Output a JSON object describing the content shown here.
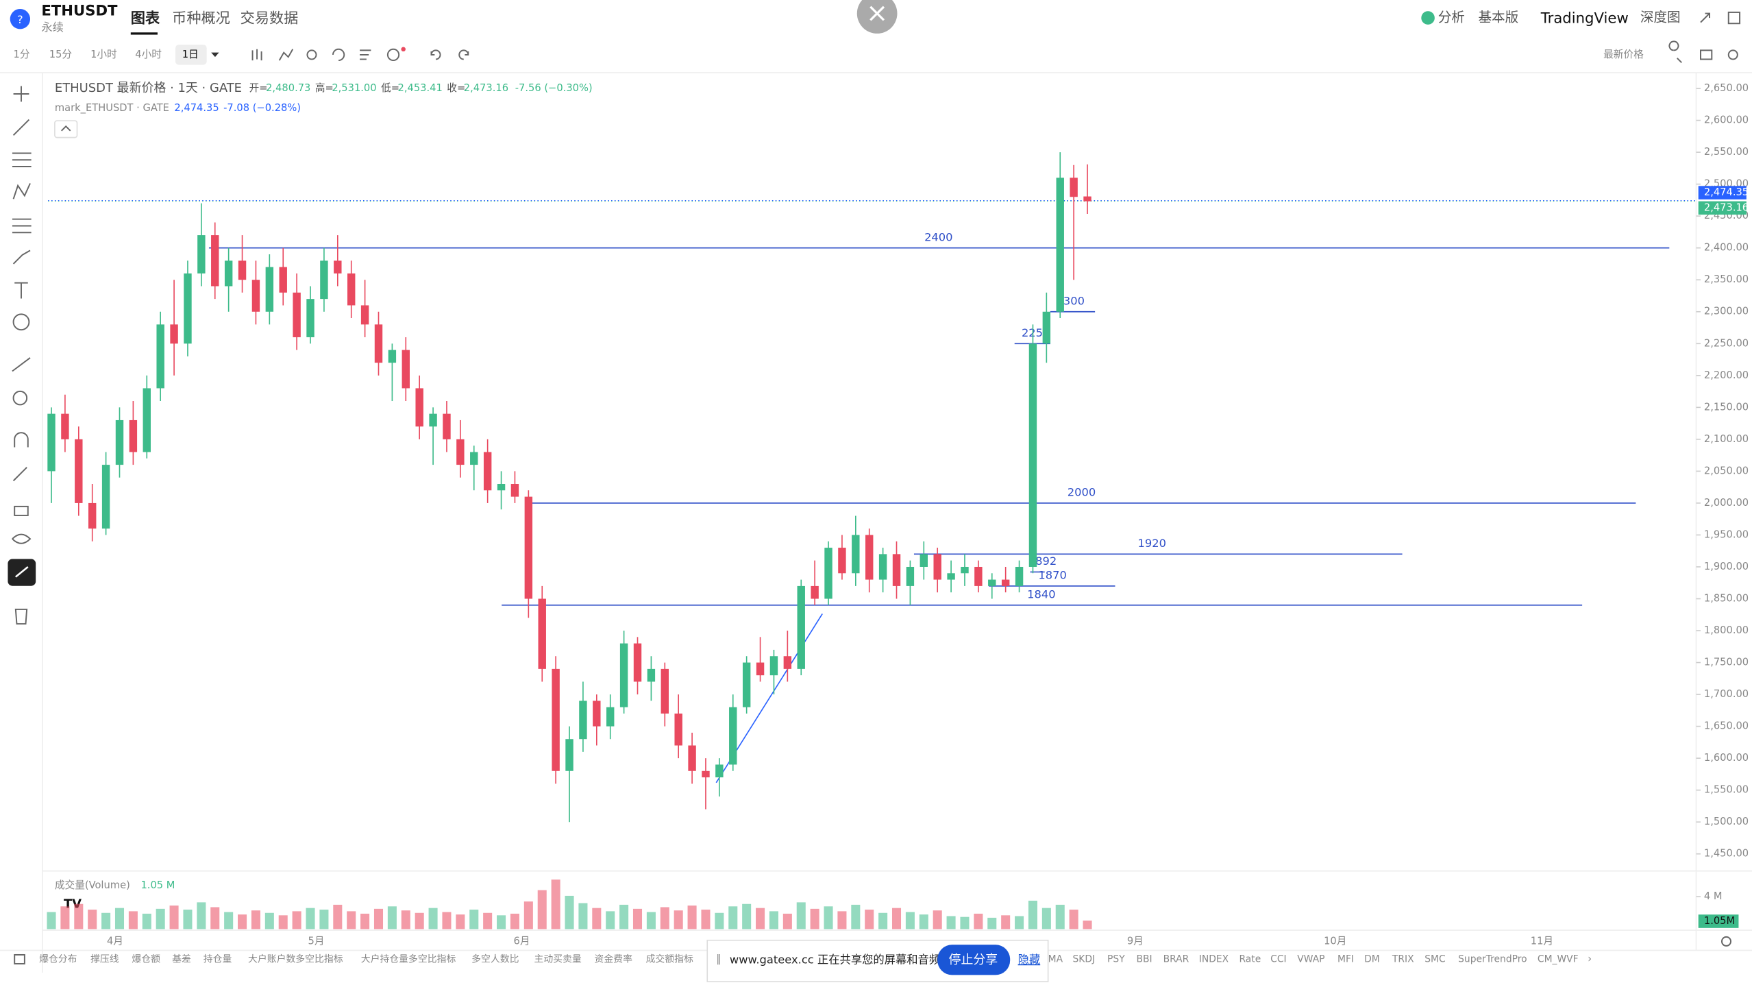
{
  "header": {
    "symbol": "ETHUSDT",
    "sub": "永续",
    "tabs": [
      "图表",
      "币种概况",
      "交易数据"
    ],
    "right": [
      "分析",
      "基本版",
      "TradingView",
      "深度图"
    ]
  },
  "toolbar": {
    "intervals": [
      "1分",
      "15分",
      "1小时",
      "4小时",
      "1日"
    ],
    "price_mode": "最新价格"
  },
  "legend": {
    "title": "ETHUSDT 最新价格 · 1天 · GATE",
    "o_label": "开=",
    "o": "2,480.73",
    "h_label": "高=",
    "h": "2,531.00",
    "l_label": "低=",
    "l": "2,453.41",
    "c_label": "收=",
    "c": "2,473.16",
    "chg": "-7.56 (−0.30%)",
    "mark_title": "mark_ETHUSDT · GATE",
    "mark_price": "2,474.35",
    "mark_chg": "-7.08 (−0.28%)"
  },
  "chart_data": {
    "type": "candlestick",
    "up_color": "#3dbb8a",
    "down_color": "#e9495f",
    "ylim": [
      1425,
      2673
    ],
    "yticks": [
      {
        "value": 2650,
        "label": "2,650.00"
      },
      {
        "value": 2600,
        "label": "2,600.00"
      },
      {
        "value": 2550,
        "label": "2,550.00"
      },
      {
        "value": 2500,
        "label": "2,500.00"
      },
      {
        "value": 2450,
        "label": "2,450.00"
      },
      {
        "value": 2400,
        "label": "2,400.00"
      },
      {
        "value": 2350,
        "label": "2,350.00"
      },
      {
        "value": 2300,
        "label": "2,300.00"
      },
      {
        "value": 2250,
        "label": "2,250.00"
      },
      {
        "value": 2200,
        "label": "2,200.00"
      },
      {
        "value": 2150,
        "label": "2,150.00"
      },
      {
        "value": 2100,
        "label": "2,100.00"
      },
      {
        "value": 2050,
        "label": "2,050.00"
      },
      {
        "value": 2000,
        "label": "2,000.00"
      },
      {
        "value": 1950,
        "label": "1,950.00"
      },
      {
        "value": 1900,
        "label": "1,900.00"
      },
      {
        "value": 1850,
        "label": "1,850.00"
      },
      {
        "value": 1800,
        "label": "1,800.00"
      },
      {
        "value": 1750,
        "label": "1,750.00"
      },
      {
        "value": 1700,
        "label": "1,700.00"
      },
      {
        "value": 1650,
        "label": "1,650.00"
      },
      {
        "value": 1600,
        "label": "1,600.00"
      },
      {
        "value": 1550,
        "label": "1,550.00"
      },
      {
        "value": 1500,
        "label": "1,500.00"
      },
      {
        "value": 1450,
        "label": "1,450.00"
      }
    ],
    "price_tags": [
      {
        "value": 2474.35,
        "label": "2,474.35",
        "color": "#2962ff"
      },
      {
        "value": 2473.16,
        "label": "2,473.16",
        "color": "#3dbb8a"
      }
    ],
    "candles": [
      [
        2050,
        2150,
        2000,
        2140
      ],
      [
        2140,
        2170,
        2080,
        2100
      ],
      [
        2100,
        2120,
        1980,
        2000
      ],
      [
        2000,
        2030,
        1940,
        1960
      ],
      [
        1960,
        2080,
        1950,
        2060
      ],
      [
        2060,
        2150,
        2040,
        2130
      ],
      [
        2130,
        2160,
        2060,
        2080
      ],
      [
        2080,
        2200,
        2070,
        2180
      ],
      [
        2180,
        2300,
        2160,
        2280
      ],
      [
        2280,
        2350,
        2200,
        2250
      ],
      [
        2250,
        2380,
        2230,
        2360
      ],
      [
        2360,
        2470,
        2340,
        2420
      ],
      [
        2420,
        2440,
        2320,
        2340
      ],
      [
        2340,
        2400,
        2300,
        2380
      ],
      [
        2380,
        2420,
        2330,
        2350
      ],
      [
        2350,
        2380,
        2280,
        2300
      ],
      [
        2300,
        2390,
        2280,
        2370
      ],
      [
        2370,
        2400,
        2310,
        2330
      ],
      [
        2330,
        2360,
        2240,
        2260
      ],
      [
        2260,
        2340,
        2250,
        2320
      ],
      [
        2320,
        2400,
        2300,
        2380
      ],
      [
        2380,
        2420,
        2340,
        2360
      ],
      [
        2360,
        2380,
        2290,
        2310
      ],
      [
        2310,
        2350,
        2260,
        2280
      ],
      [
        2280,
        2300,
        2200,
        2220
      ],
      [
        2220,
        2250,
        2160,
        2240
      ],
      [
        2240,
        2260,
        2160,
        2180
      ],
      [
        2180,
        2200,
        2100,
        2120
      ],
      [
        2120,
        2150,
        2060,
        2140
      ],
      [
        2140,
        2160,
        2080,
        2100
      ],
      [
        2100,
        2130,
        2040,
        2060
      ],
      [
        2060,
        2090,
        2020,
        2080
      ],
      [
        2080,
        2100,
        2000,
        2020
      ],
      [
        2020,
        2050,
        1990,
        2030
      ],
      [
        2030,
        2050,
        2000,
        2010
      ],
      [
        2010,
        2020,
        1820,
        1850
      ],
      [
        1850,
        1870,
        1720,
        1740
      ],
      [
        1740,
        1760,
        1560,
        1580
      ],
      [
        1580,
        1650,
        1500,
        1630
      ],
      [
        1630,
        1720,
        1610,
        1690
      ],
      [
        1690,
        1700,
        1620,
        1650
      ],
      [
        1650,
        1700,
        1630,
        1680
      ],
      [
        1680,
        1800,
        1670,
        1780
      ],
      [
        1780,
        1790,
        1700,
        1720
      ],
      [
        1720,
        1760,
        1690,
        1740
      ],
      [
        1740,
        1750,
        1650,
        1670
      ],
      [
        1670,
        1700,
        1600,
        1620
      ],
      [
        1620,
        1640,
        1560,
        1580
      ],
      [
        1580,
        1600,
        1520,
        1570
      ],
      [
        1570,
        1600,
        1540,
        1590
      ],
      [
        1590,
        1700,
        1580,
        1680
      ],
      [
        1680,
        1760,
        1670,
        1750
      ],
      [
        1750,
        1790,
        1720,
        1730
      ],
      [
        1730,
        1770,
        1700,
        1760
      ],
      [
        1760,
        1800,
        1720,
        1740
      ],
      [
        1740,
        1880,
        1730,
        1870
      ],
      [
        1870,
        1910,
        1840,
        1850
      ],
      [
        1850,
        1940,
        1840,
        1930
      ],
      [
        1930,
        1950,
        1880,
        1890
      ],
      [
        1890,
        1980,
        1870,
        1950
      ],
      [
        1950,
        1960,
        1860,
        1880
      ],
      [
        1880,
        1930,
        1860,
        1920
      ],
      [
        1920,
        1940,
        1850,
        1870
      ],
      [
        1870,
        1910,
        1840,
        1900
      ],
      [
        1900,
        1940,
        1880,
        1920
      ],
      [
        1920,
        1930,
        1860,
        1880
      ],
      [
        1880,
        1910,
        1860,
        1890
      ],
      [
        1890,
        1920,
        1870,
        1900
      ],
      [
        1900,
        1910,
        1860,
        1870
      ],
      [
        1870,
        1890,
        1850,
        1880
      ],
      [
        1880,
        1900,
        1860,
        1870
      ],
      [
        1870,
        1910,
        1860,
        1900
      ],
      [
        1900,
        2280,
        1890,
        2250
      ],
      [
        2250,
        2330,
        2220,
        2300
      ],
      [
        2300,
        2550,
        2290,
        2510
      ],
      [
        2510,
        2530,
        2350,
        2480
      ],
      [
        2480.73,
        2531,
        2453.41,
        2473.16
      ]
    ],
    "volume_title": "成交量(Volume)",
    "volume_value_label": "1.05 M",
    "volumes": [
      2.1,
      2.8,
      3.1,
      2.4,
      2.0,
      2.6,
      2.2,
      1.9,
      2.5,
      2.9,
      2.4,
      3.3,
      2.7,
      2.1,
      1.8,
      2.3,
      2.0,
      1.7,
      2.2,
      2.6,
      2.4,
      3.0,
      2.2,
      1.9,
      2.5,
      2.8,
      2.3,
      2.0,
      2.6,
      2.1,
      1.8,
      2.4,
      2.0,
      1.7,
      1.9,
      3.4,
      4.8,
      6.1,
      4.1,
      3.2,
      2.6,
      2.2,
      3.0,
      2.5,
      2.1,
      2.7,
      2.3,
      2.9,
      2.4,
      2.0,
      2.8,
      3.1,
      2.6,
      2.2,
      1.9,
      3.3,
      2.5,
      2.8,
      2.2,
      3.0,
      2.4,
      2.0,
      2.6,
      2.1,
      1.8,
      2.3,
      1.6,
      1.5,
      1.9,
      1.4,
      1.7,
      1.6,
      3.5,
      2.6,
      3.0,
      2.4,
      1.05
    ],
    "volume_last_label": "1.05M",
    "vlim": [
      0,
      6.2
    ],
    "vticks": [
      {
        "value": 4,
        "label": "4 M"
      }
    ],
    "x_labels": [
      "4月",
      "5月",
      "6月",
      "9月",
      "10月",
      "11月"
    ],
    "levels": [
      2400,
      2300,
      2250,
      2000,
      1920,
      1892,
      1870,
      1840
    ]
  },
  "indicators_left": [
    "爆仓分布",
    "撑压线",
    "爆仓额",
    "基差",
    "持仓量",
    "大户账户数多空比指标",
    "大户持仓量多空比指标",
    "多空人数比",
    "主动买卖量",
    "资金费率",
    "成交额指标"
  ],
  "indicators_right": [
    "MA",
    "SKDJ",
    "PSY",
    "BBI",
    "BRAR",
    "INDEX",
    "Rate",
    "CCI",
    "VWAP",
    "MFI",
    "DM",
    "TRIX",
    "SMC",
    "SuperTrendPro",
    "CM_WVF"
  ],
  "share": {
    "text": "www.gateex.cc 正在共享您的屏幕和音频。",
    "stop": "停止分享",
    "hide": "隐藏"
  }
}
